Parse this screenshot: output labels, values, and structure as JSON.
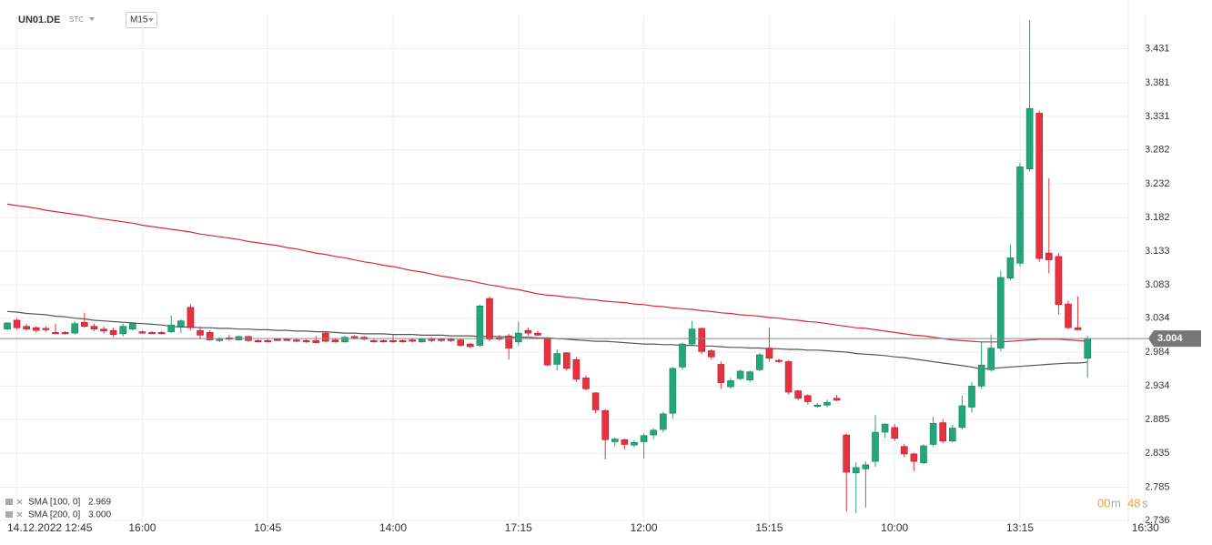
{
  "header": {
    "symbol": "UN01.DE",
    "type": "STC",
    "interval": "M15"
  },
  "timer": [
    "00",
    "m",
    "48",
    "s"
  ],
  "chart_data": {
    "type": "candlestick",
    "categories": [
      null,
      "14.12.2022 12:45",
      null,
      null,
      null,
      null,
      null,
      null,
      null,
      null,
      null,
      null,
      null,
      null,
      "16:00",
      null,
      null,
      null,
      null,
      null,
      null,
      null,
      null,
      null,
      null,
      null,
      null,
      "10:45",
      null,
      null,
      null,
      null,
      null,
      null,
      null,
      null,
      null,
      null,
      null,
      null,
      "14:00",
      null,
      null,
      null,
      null,
      null,
      null,
      null,
      null,
      null,
      null,
      null,
      null,
      "17:15",
      null,
      null,
      null,
      null,
      null,
      null,
      null,
      null,
      null,
      null,
      null,
      null,
      "12:00",
      null,
      null,
      null,
      null,
      null,
      null,
      null,
      null,
      null,
      null,
      null,
      null,
      "15:15",
      null,
      null,
      null,
      null,
      null,
      null,
      null,
      null,
      null,
      null,
      null,
      null,
      "10:00",
      null,
      null,
      null,
      null,
      null,
      null,
      null,
      null,
      null,
      null,
      null,
      null,
      "13:15",
      null,
      null,
      null,
      null,
      null,
      null,
      null,
      null,
      null,
      null,
      null,
      null,
      "16:30"
    ],
    "ohlc": [
      [
        3.018,
        3.028,
        3.016,
        3.027
      ],
      [
        3.031,
        3.034,
        3.017,
        3.02
      ],
      [
        3.022,
        3.026,
        3.016,
        3.018
      ],
      [
        3.02,
        3.022,
        3.013,
        3.016
      ],
      [
        3.019,
        3.022,
        3.014,
        3.017
      ],
      [
        3.013,
        3.026,
        3.011,
        3.011
      ],
      [
        3.013,
        3.015,
        3.01,
        3.011
      ],
      [
        3.012,
        3.03,
        3.01,
        3.026
      ],
      [
        3.028,
        3.042,
        3.02,
        3.022
      ],
      [
        3.022,
        3.026,
        3.015,
        3.018
      ],
      [
        3.018,
        3.022,
        3.011,
        3.015
      ],
      [
        3.016,
        3.02,
        3.006,
        3.01
      ],
      [
        3.011,
        3.026,
        3.007,
        3.022
      ],
      [
        3.018,
        3.028,
        3.016,
        3.026
      ],
      [
        3.014,
        3.016,
        3.011,
        3.012
      ],
      [
        3.013,
        3.015,
        3.011,
        3.012
      ],
      [
        3.013,
        3.015,
        3.011,
        3.012
      ],
      [
        3.014,
        3.038,
        3.012,
        3.024
      ],
      [
        3.022,
        3.032,
        3.012,
        3.03
      ],
      [
        3.05,
        3.055,
        3.016,
        3.02
      ],
      [
        3.016,
        3.022,
        3.003,
        3.009
      ],
      [
        3.013,
        3.016,
        3.001,
        3.002
      ],
      [
        3.001,
        3.006,
        2.999,
        3.004
      ],
      [
        3.005,
        3.01,
        3.001,
        3.003
      ],
      [
        3.002,
        3.008,
        3.001,
        3.007
      ],
      [
        3.007,
        3.008,
        2.999,
        3.001
      ],
      [
        3.001,
        3.003,
        2.998,
        2.999
      ],
      [
        3.001,
        3.003,
        2.998,
        2.999
      ],
      [
        3.003,
        3.005,
        3.001,
        3.002
      ],
      [
        3.003,
        3.005,
        3.001,
        3.002
      ],
      [
        3.002,
        3.004,
        2.999,
        3.0
      ],
      [
        3.001,
        3.003,
        2.998,
        2.999
      ],
      [
        3.001,
        3.008,
        2.997,
        2.998
      ],
      [
        3.012,
        3.014,
        2.998,
        3.0
      ],
      [
        3.002,
        3.004,
        2.998,
        2.999
      ],
      [
        2.999,
        3.008,
        2.998,
        3.006
      ],
      [
        3.007,
        3.009,
        3.003,
        3.004
      ],
      [
        3.006,
        3.008,
        3.001,
        3.003
      ],
      [
        3.001,
        3.003,
        2.998,
        2.999
      ],
      [
        3.001,
        3.003,
        2.998,
        2.999
      ],
      [
        3.001,
        3.009,
        2.998,
        2.999
      ],
      [
        3.001,
        3.003,
        2.998,
        2.999
      ],
      [
        3.002,
        3.004,
        2.998,
        3.0
      ],
      [
        2.999,
        3.005,
        2.998,
        3.003
      ],
      [
        3.004,
        3.006,
        2.999,
        3.001
      ],
      [
        3.003,
        3.005,
        2.999,
        3.001
      ],
      [
        3.003,
        3.005,
        2.999,
        3.001
      ],
      [
        3.002,
        3.004,
        2.992,
        2.994
      ],
      [
        2.996,
        2.998,
        2.99,
        2.992
      ],
      [
        2.994,
        3.054,
        2.992,
        3.052
      ],
      [
        3.063,
        3.066,
        3.0,
        3.003
      ],
      [
        3.005,
        3.009,
        3.001,
        3.003
      ],
      [
        3.008,
        3.011,
        2.973,
        2.99
      ],
      [
        2.999,
        3.029,
        2.993,
        3.012
      ],
      [
        3.016,
        3.02,
        3.008,
        3.012
      ],
      [
        3.012,
        3.015,
        3.008,
        3.009
      ],
      [
        3.004,
        3.006,
        2.963,
        2.965
      ],
      [
        2.966,
        2.988,
        2.957,
        2.982
      ],
      [
        2.983,
        2.984,
        2.957,
        2.96
      ],
      [
        2.973,
        2.977,
        2.94,
        2.944
      ],
      [
        2.946,
        2.95,
        2.927,
        2.93
      ],
      [
        2.924,
        2.925,
        2.894,
        2.899
      ],
      [
        2.898,
        2.9,
        2.826,
        2.855
      ],
      [
        2.852,
        2.858,
        2.845,
        2.856
      ],
      [
        2.855,
        2.857,
        2.841,
        2.848
      ],
      [
        2.847,
        2.854,
        2.844,
        2.851
      ],
      [
        2.852,
        2.864,
        2.827,
        2.861
      ],
      [
        2.862,
        2.872,
        2.856,
        2.869
      ],
      [
        2.87,
        2.896,
        2.866,
        2.893
      ],
      [
        2.894,
        2.962,
        2.886,
        2.96
      ],
      [
        2.962,
        2.998,
        2.958,
        2.996
      ],
      [
        2.996,
        3.03,
        2.993,
        3.018
      ],
      [
        3.019,
        3.02,
        2.981,
        2.985
      ],
      [
        2.986,
        2.988,
        2.973,
        2.977
      ],
      [
        2.966,
        2.97,
        2.93,
        2.939
      ],
      [
        2.933,
        2.946,
        2.93,
        2.942
      ],
      [
        2.945,
        2.958,
        2.943,
        2.956
      ],
      [
        2.943,
        2.957,
        2.94,
        2.955
      ],
      [
        2.958,
        2.983,
        2.956,
        2.98
      ],
      [
        2.99,
        3.02,
        2.97,
        2.975
      ],
      [
        2.972,
        2.974,
        2.968,
        2.97
      ],
      [
        2.97,
        2.972,
        2.922,
        2.925
      ],
      [
        2.927,
        2.928,
        2.913,
        2.916
      ],
      [
        2.92,
        2.922,
        2.907,
        2.911
      ],
      [
        2.904,
        2.909,
        2.902,
        2.906
      ],
      [
        2.906,
        2.914,
        2.903,
        2.91
      ],
      [
        2.916,
        2.921,
        2.912,
        2.913
      ],
      [
        2.862,
        2.864,
        2.749,
        2.807
      ],
      [
        2.806,
        2.822,
        2.747,
        2.814
      ],
      [
        2.812,
        2.823,
        2.755,
        2.818
      ],
      [
        2.823,
        2.891,
        2.815,
        2.866
      ],
      [
        2.866,
        2.879,
        2.858,
        2.878
      ],
      [
        2.873,
        2.878,
        2.853,
        2.857
      ],
      [
        2.845,
        2.849,
        2.829,
        2.834
      ],
      [
        2.834,
        2.836,
        2.809,
        2.823
      ],
      [
        2.821,
        2.848,
        2.819,
        2.846
      ],
      [
        2.848,
        2.889,
        2.845,
        2.879
      ],
      [
        2.88,
        2.885,
        2.85,
        2.853
      ],
      [
        2.853,
        2.877,
        2.851,
        2.872
      ],
      [
        2.873,
        2.92,
        2.87,
        2.905
      ],
      [
        2.903,
        2.94,
        2.895,
        2.934
      ],
      [
        2.934,
        3.0,
        2.93,
        2.965
      ],
      [
        2.958,
        3.01,
        2.955,
        2.99
      ],
      [
        2.99,
        3.104,
        2.985,
        3.094
      ],
      [
        3.093,
        3.143,
        3.09,
        3.123
      ],
      [
        3.115,
        3.263,
        3.11,
        3.257
      ],
      [
        3.254,
        3.473,
        3.25,
        3.343
      ],
      [
        3.336,
        3.34,
        3.117,
        3.122
      ],
      [
        3.13,
        3.24,
        3.1,
        3.12
      ],
      [
        3.125,
        3.13,
        3.04,
        3.054
      ],
      [
        3.055,
        3.06,
        3.018,
        3.02
      ],
      [
        3.02,
        3.066,
        3.016,
        3.017
      ],
      [
        2.975,
        3.008,
        2.946,
        3.004
      ],
      null,
      null,
      null,
      null,
      null,
      null
    ],
    "up_color": "#22a67a",
    "down_color": "#e8313f",
    "series": [
      {
        "name": "SMA [100, 0]",
        "legend_value": "2.969",
        "color": "#555555",
        "values": [
          3.044,
          3.043,
          3.041,
          3.04,
          3.039,
          3.037,
          3.036,
          3.034,
          3.033,
          3.031,
          3.03,
          3.029,
          3.028,
          3.027,
          3.026,
          3.025,
          3.024,
          3.022,
          3.021,
          3.021,
          3.02,
          3.02,
          3.019,
          3.019,
          3.018,
          3.018,
          3.017,
          3.017,
          3.016,
          3.016,
          3.015,
          3.015,
          3.014,
          3.014,
          3.013,
          3.012,
          3.012,
          3.011,
          3.011,
          3.011,
          3.01,
          3.01,
          3.01,
          3.009,
          3.009,
          3.009,
          3.008,
          3.008,
          3.008,
          3.007,
          3.007,
          3.007,
          3.006,
          3.006,
          3.006,
          3.005,
          3.005,
          3.004,
          3.003,
          3.002,
          3.001,
          3.0,
          3.0,
          2.999,
          2.998,
          2.997,
          2.996,
          2.996,
          2.995,
          2.995,
          2.994,
          2.994,
          2.993,
          2.993,
          2.992,
          2.991,
          2.991,
          2.99,
          2.99,
          2.989,
          2.989,
          2.988,
          2.988,
          2.987,
          2.987,
          2.986,
          2.985,
          2.984,
          2.982,
          2.981,
          2.98,
          2.979,
          2.977,
          2.976,
          2.974,
          2.972,
          2.97,
          2.968,
          2.966,
          2.964,
          2.962,
          2.959,
          2.96,
          2.961,
          2.962,
          2.963,
          2.964,
          2.965,
          2.966,
          2.967,
          2.968,
          2.968,
          2.969,
          null,
          null,
          null,
          null,
          null,
          null
        ]
      },
      {
        "name": "SMA [200, 0]",
        "legend_value": "3.000",
        "color": "#d32f2f",
        "values": [
          3.202,
          3.2,
          3.198,
          3.196,
          3.193,
          3.191,
          3.189,
          3.187,
          3.185,
          3.182,
          3.18,
          3.178,
          3.176,
          3.174,
          3.171,
          3.169,
          3.167,
          3.165,
          3.163,
          3.161,
          3.158,
          3.156,
          3.154,
          3.152,
          3.15,
          3.147,
          3.145,
          3.143,
          3.141,
          3.138,
          3.136,
          3.133,
          3.13,
          3.128,
          3.125,
          3.123,
          3.12,
          3.117,
          3.115,
          3.112,
          3.11,
          3.107,
          3.104,
          3.102,
          3.099,
          3.096,
          3.094,
          3.091,
          3.089,
          3.086,
          3.083,
          3.081,
          3.078,
          3.076,
          3.073,
          3.07,
          3.068,
          3.067,
          3.065,
          3.064,
          3.062,
          3.061,
          3.059,
          3.058,
          3.057,
          3.055,
          3.054,
          3.052,
          3.051,
          3.049,
          3.048,
          3.047,
          3.045,
          3.044,
          3.042,
          3.041,
          3.039,
          3.038,
          3.037,
          3.035,
          3.034,
          3.032,
          3.031,
          3.029,
          3.028,
          3.026,
          3.024,
          3.022,
          3.02,
          3.019,
          3.017,
          3.015,
          3.013,
          3.011,
          3.009,
          3.008,
          3.006,
          3.004,
          3.002,
          3.001,
          3.0,
          2.999,
          2.999,
          2.999,
          3.0,
          3.001,
          3.002,
          3.003,
          3.003,
          3.003,
          3.002,
          3.001,
          3.0,
          null,
          null,
          null,
          null,
          null,
          null
        ]
      }
    ],
    "current_price": 3.004,
    "ylim": [
      2.728,
      3.48
    ],
    "yticks": [
      3.431,
      3.381,
      3.331,
      3.282,
      3.232,
      3.182,
      3.133,
      3.083,
      3.034,
      2.984,
      2.934,
      2.885,
      2.835,
      2.785,
      2.736
    ],
    "grid": true
  }
}
